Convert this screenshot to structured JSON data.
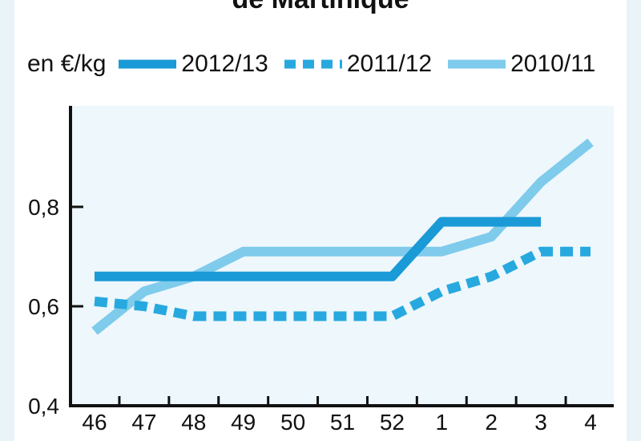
{
  "chart_data": {
    "type": "line",
    "title": "de Martinique",
    "ylabel": "en €/kg",
    "categories": [
      "46",
      "47",
      "48",
      "49",
      "50",
      "51",
      "52",
      "1",
      "2",
      "3",
      "4"
    ],
    "ylim": [
      0.4,
      0.95
    ],
    "yticks": [
      0.4,
      0.6,
      0.8
    ],
    "ytick_labels": [
      "0,4",
      "0,6",
      "0,8"
    ],
    "grid": false,
    "legend_position": "top",
    "series": [
      {
        "name": "2012/13",
        "color": "#1a9ad6",
        "style": "solid",
        "values": [
          0.66,
          0.66,
          0.66,
          0.66,
          0.66,
          0.66,
          0.66,
          0.77,
          0.77,
          0.77,
          null
        ]
      },
      {
        "name": "2011/12",
        "color": "#27a9df",
        "style": "dashed",
        "values": [
          0.61,
          0.6,
          0.58,
          0.58,
          0.58,
          0.58,
          0.58,
          0.63,
          0.66,
          0.71,
          0.71
        ]
      },
      {
        "name": "2010/11",
        "color": "#7fcbec",
        "style": "solid",
        "values": [
          0.55,
          0.63,
          0.66,
          0.71,
          0.71,
          0.71,
          0.71,
          0.71,
          0.74,
          0.85,
          0.93
        ]
      }
    ]
  }
}
